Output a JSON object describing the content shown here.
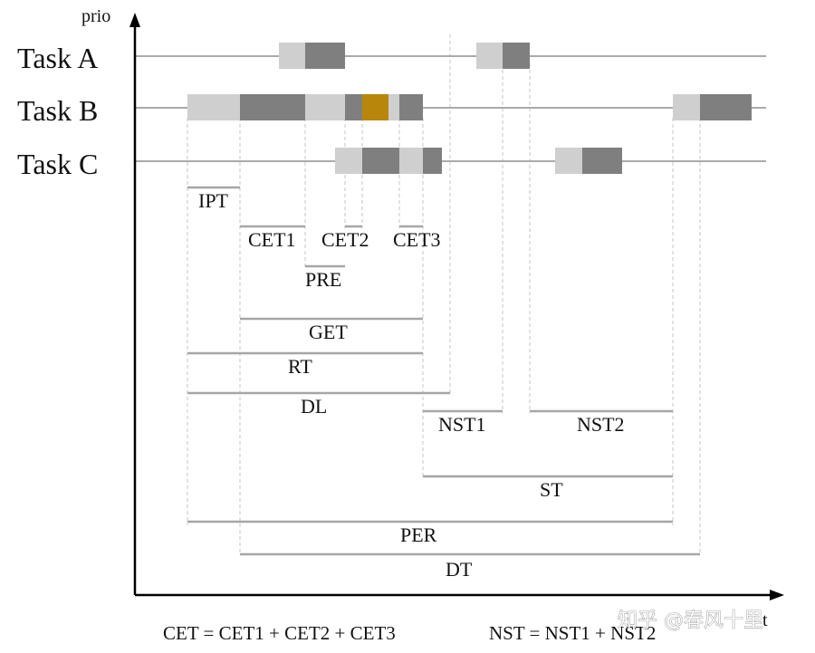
{
  "axes": {
    "y_label": "prio",
    "x_label": "t"
  },
  "tasks": [
    {
      "id": "A",
      "label": "Task A"
    },
    {
      "id": "B",
      "label": "Task B"
    },
    {
      "id": "C",
      "label": "Task C"
    }
  ],
  "colors": {
    "light_segment": "#cfcfcf",
    "dark_segment": "#7f7f7f",
    "highlight_segment": "#b8860b",
    "timeline": "#aaaaaa",
    "axis": "#000000"
  },
  "metrics": {
    "ipt": "IPT",
    "cet1": "CET1",
    "cet2": "CET2",
    "cet3": "CET3",
    "pre": "PRE",
    "get": "GET",
    "rt": "RT",
    "dl": "DL",
    "nst1": "NST1",
    "nst2": "NST2",
    "st": "ST",
    "per": "PER",
    "dt": "DT"
  },
  "formulas": {
    "cet": "CET = CET1 + CET2 + CET3",
    "nst": "NST = NST1 + NST2"
  },
  "watermark": "知乎 @春风十里"
}
